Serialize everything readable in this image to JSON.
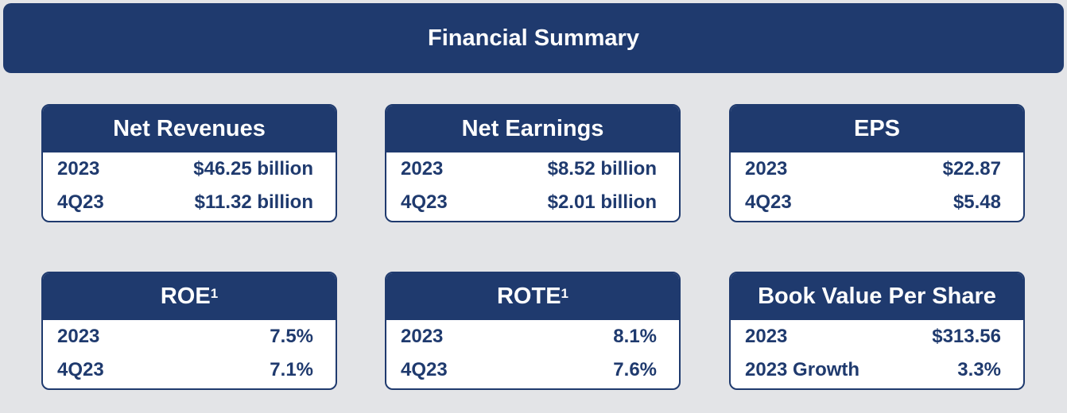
{
  "title": "Financial Summary",
  "cards": [
    {
      "heading": "Net Revenues",
      "superscript": "",
      "rows": [
        {
          "label": "2023",
          "value": "$46.25 billion"
        },
        {
          "label": "4Q23",
          "value": "$11.32 billion"
        }
      ]
    },
    {
      "heading": "Net Earnings",
      "superscript": "",
      "rows": [
        {
          "label": "2023",
          "value": "$8.52 billion"
        },
        {
          "label": "4Q23",
          "value": "$2.01 billion"
        }
      ]
    },
    {
      "heading": "EPS",
      "superscript": "",
      "rows": [
        {
          "label": "2023",
          "value": "$22.87"
        },
        {
          "label": "4Q23",
          "value": "$5.48"
        }
      ]
    },
    {
      "heading": "ROE",
      "superscript": "1",
      "rows": [
        {
          "label": "2023",
          "value": "7.5%"
        },
        {
          "label": "4Q23",
          "value": "7.1%"
        }
      ]
    },
    {
      "heading": "ROTE",
      "superscript": "1",
      "rows": [
        {
          "label": "2023",
          "value": "8.1%"
        },
        {
          "label": "4Q23",
          "value": "7.6%"
        }
      ]
    },
    {
      "heading": "Book Value Per Share",
      "superscript": "",
      "rows": [
        {
          "label": "2023",
          "value": "$313.56"
        },
        {
          "label": "2023 Growth",
          "value": "3.3%"
        }
      ]
    }
  ]
}
